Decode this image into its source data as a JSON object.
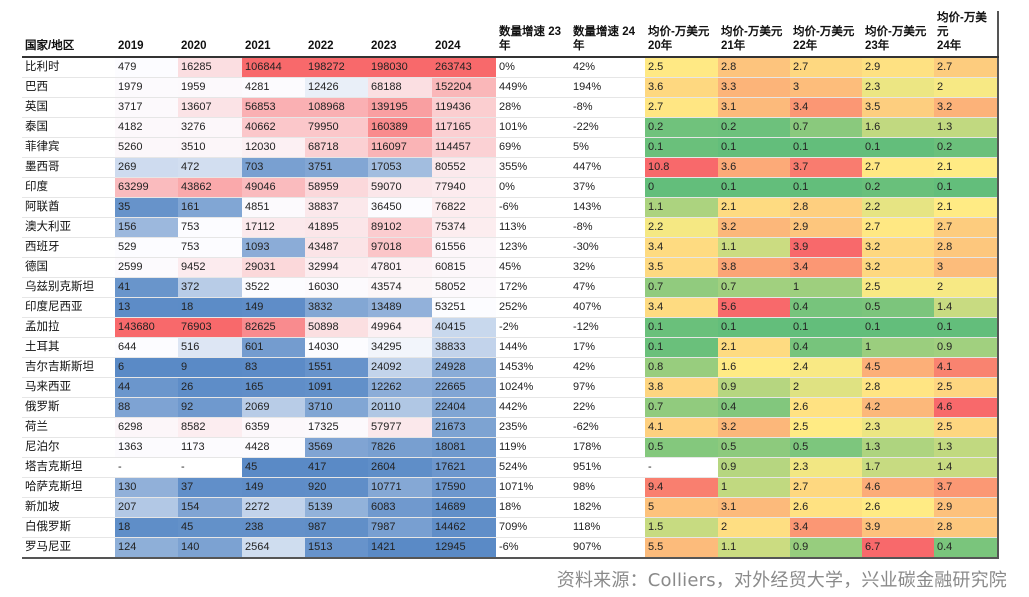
{
  "chart_data": {
    "type": "table",
    "title": "",
    "columns": [
      "国家/地区",
      "2019",
      "2020",
      "2021",
      "2022",
      "2023",
      "2024",
      "数量增速 23年",
      "数量增速 24年",
      "均价-万美元 20年",
      "均价-万美元 21年",
      "均价-万美元 22年",
      "均价-万美元 23年",
      "均价-万美元 24年"
    ],
    "header_lines": [
      [
        "国家/地区"
      ],
      [
        "2019"
      ],
      [
        "2020"
      ],
      [
        "2021"
      ],
      [
        "2022"
      ],
      [
        "2023"
      ],
      [
        "2024"
      ],
      [
        "数量增速 23年"
      ],
      [
        "数量增速 24年"
      ],
      [
        "均价-万美元",
        "20年"
      ],
      [
        "均价-万美元",
        "21年"
      ],
      [
        "均价-万美元",
        "22年"
      ],
      [
        "均价-万美元",
        "23年"
      ],
      [
        "均价-万美元",
        "24年"
      ]
    ],
    "rows": [
      {
        "country": "比利时",
        "volume": [
          "479",
          "16285",
          "106844",
          "198272",
          "198030",
          "263743"
        ],
        "growth": [
          "0%",
          "42%"
        ],
        "price": [
          "2.5",
          "2.8",
          "2.7",
          "2.9",
          "2.7"
        ]
      },
      {
        "country": "巴西",
        "volume": [
          "1979",
          "1959",
          "4281",
          "12426",
          "68188",
          "152204"
        ],
        "growth": [
          "449%",
          "194%"
        ],
        "price": [
          "3.6",
          "3.3",
          "3",
          "2.3",
          "2"
        ]
      },
      {
        "country": "英国",
        "volume": [
          "3717",
          "13607",
          "56853",
          "108968",
          "139195",
          "119436"
        ],
        "growth": [
          "28%",
          "-8%"
        ],
        "price": [
          "2.7",
          "3.1",
          "3.4",
          "3.5",
          "3.2"
        ]
      },
      {
        "country": "泰国",
        "volume": [
          "4182",
          "3276",
          "40662",
          "79950",
          "160389",
          "117165"
        ],
        "growth": [
          "101%",
          "-22%"
        ],
        "price": [
          "0.2",
          "0.2",
          "0.7",
          "1.6",
          "1.3"
        ]
      },
      {
        "country": "菲律宾",
        "volume": [
          "5260",
          "3510",
          "12030",
          "68718",
          "116097",
          "114457"
        ],
        "growth": [
          "69%",
          "5%"
        ],
        "price": [
          "0.1",
          "0.1",
          "0.1",
          "0.1",
          "0.2"
        ]
      },
      {
        "country": "墨西哥",
        "volume": [
          "269",
          "472",
          "703",
          "3751",
          "17053",
          "80552"
        ],
        "growth": [
          "355%",
          "447%"
        ],
        "price": [
          "10.8",
          "3.6",
          "3.7",
          "2.7",
          "2.1"
        ]
      },
      {
        "country": "印度",
        "volume": [
          "63299",
          "43862",
          "49046",
          "58959",
          "59070",
          "77940"
        ],
        "growth": [
          "0%",
          "37%"
        ],
        "price": [
          "0",
          "0.1",
          "0.1",
          "0.2",
          "0.1"
        ]
      },
      {
        "country": "阿联酋",
        "volume": [
          "35",
          "161",
          "4851",
          "38837",
          "36450",
          "76822"
        ],
        "growth": [
          "-6%",
          "143%"
        ],
        "price": [
          "1.1",
          "2.1",
          "2.8",
          "2.2",
          "2.1"
        ]
      },
      {
        "country": "澳大利亚",
        "volume": [
          "156",
          "753",
          "17112",
          "41895",
          "89102",
          "75374"
        ],
        "growth": [
          "113%",
          "-8%"
        ],
        "price": [
          "2.2",
          "3.2",
          "2.9",
          "2.7",
          "2.7"
        ]
      },
      {
        "country": "西班牙",
        "volume": [
          "529",
          "753",
          "1093",
          "43487",
          "97018",
          "61556"
        ],
        "growth": [
          "123%",
          "-30%"
        ],
        "price": [
          "3.4",
          "1.1",
          "3.9",
          "3.2",
          "2.8"
        ]
      },
      {
        "country": "德国",
        "volume": [
          "2599",
          "9452",
          "29031",
          "32994",
          "47801",
          "60815"
        ],
        "growth": [
          "45%",
          "32%"
        ],
        "price": [
          "3.5",
          "3.8",
          "3.4",
          "3.2",
          "3"
        ]
      },
      {
        "country": "乌兹别克斯坦",
        "volume": [
          "41",
          "372",
          "3522",
          "16030",
          "43574",
          "58052"
        ],
        "growth": [
          "172%",
          "47%"
        ],
        "price": [
          "0.7",
          "0.7",
          "1",
          "2.5",
          "2"
        ]
      },
      {
        "country": "印度尼西亚",
        "volume": [
          "13",
          "18",
          "149",
          "3832",
          "13489",
          "53251"
        ],
        "growth": [
          "252%",
          "407%"
        ],
        "price": [
          "3.4",
          "5.6",
          "0.4",
          "0.5",
          "1.4"
        ]
      },
      {
        "country": "孟加拉",
        "volume": [
          "143680",
          "76903",
          "82625",
          "50898",
          "49964",
          "40415"
        ],
        "growth": [
          "-2%",
          "-12%"
        ],
        "price": [
          "0.1",
          "0.1",
          "0.1",
          "0.1",
          "0.1"
        ]
      },
      {
        "country": "土耳其",
        "volume": [
          "644",
          "516",
          "601",
          "14030",
          "34295",
          "38833"
        ],
        "growth": [
          "144%",
          "17%"
        ],
        "price": [
          "0.1",
          "2.1",
          "0.4",
          "1",
          "0.9"
        ]
      },
      {
        "country": "吉尔吉斯斯坦",
        "volume": [
          "6",
          "9",
          "83",
          "1551",
          "24092",
          "24928"
        ],
        "growth": [
          "1453%",
          "42%"
        ],
        "price": [
          "0.8",
          "1.6",
          "2.4",
          "4.5",
          "4.1"
        ]
      },
      {
        "country": "马来西亚",
        "volume": [
          "44",
          "26",
          "165",
          "1091",
          "12262",
          "22665"
        ],
        "growth": [
          "1024%",
          "97%"
        ],
        "price": [
          "3.8",
          "0.9",
          "2",
          "2.8",
          "2.5"
        ]
      },
      {
        "country": "俄罗斯",
        "volume": [
          "88",
          "92",
          "2069",
          "3710",
          "20110",
          "22404"
        ],
        "growth": [
          "442%",
          "22%"
        ],
        "price": [
          "0.7",
          "0.4",
          "2.6",
          "4.2",
          "4.6"
        ]
      },
      {
        "country": "荷兰",
        "volume": [
          "6298",
          "8582",
          "6359",
          "17325",
          "57977",
          "21673"
        ],
        "growth": [
          "235%",
          "-62%"
        ],
        "price": [
          "4.1",
          "3.2",
          "2.5",
          "2.3",
          "2.5"
        ]
      },
      {
        "country": "尼泊尔",
        "volume": [
          "1363",
          "1173",
          "4428",
          "3569",
          "7826",
          "18081"
        ],
        "growth": [
          "119%",
          "178%"
        ],
        "price": [
          "0.5",
          "0.5",
          "0.5",
          "1.3",
          "1.3"
        ]
      },
      {
        "country": "塔吉克斯坦",
        "volume": [
          "-",
          "-",
          "45",
          "417",
          "2604",
          "17621"
        ],
        "growth": [
          "524%",
          "951%"
        ],
        "price": [
          "-",
          "0.9",
          "2.3",
          "1.7",
          "1.4"
        ]
      },
      {
        "country": "哈萨克斯坦",
        "volume": [
          "130",
          "37",
          "149",
          "920",
          "10771",
          "17590"
        ],
        "growth": [
          "1071%",
          "98%"
        ],
        "price": [
          "9.4",
          "1",
          "2.7",
          "4.6",
          "3.7"
        ]
      },
      {
        "country": "新加坡",
        "volume": [
          "207",
          "154",
          "2272",
          "5139",
          "6083",
          "14689"
        ],
        "growth": [
          "18%",
          "182%"
        ],
        "price": [
          "5",
          "3.1",
          "2.6",
          "2.6",
          "2.9"
        ]
      },
      {
        "country": "白俄罗斯",
        "volume": [
          "18",
          "45",
          "238",
          "987",
          "7987",
          "14462"
        ],
        "growth": [
          "709%",
          "118%"
        ],
        "price": [
          "1.5",
          "2",
          "3.4",
          "3.9",
          "2.8"
        ]
      },
      {
        "country": "罗马尼亚",
        "volume": [
          "124",
          "140",
          "2564",
          "1513",
          "1421",
          "12945"
        ],
        "growth": [
          "-6%",
          "907%"
        ],
        "price": [
          "5.5",
          "1.1",
          "0.9",
          "6.7",
          "0.4"
        ]
      }
    ],
    "color_scales": {
      "volume": {
        "type": "3-color",
        "low": "#5a8ac6",
        "mid": "#fcfcff",
        "high": "#f8696b"
      },
      "price": {
        "type": "3-color",
        "low": "#63be7b",
        "mid": "#ffeb84",
        "high": "#f8696b"
      }
    }
  },
  "footer": {
    "source": "资料来源：Colliers，对外经贸大学，兴业碳金融研究院"
  }
}
